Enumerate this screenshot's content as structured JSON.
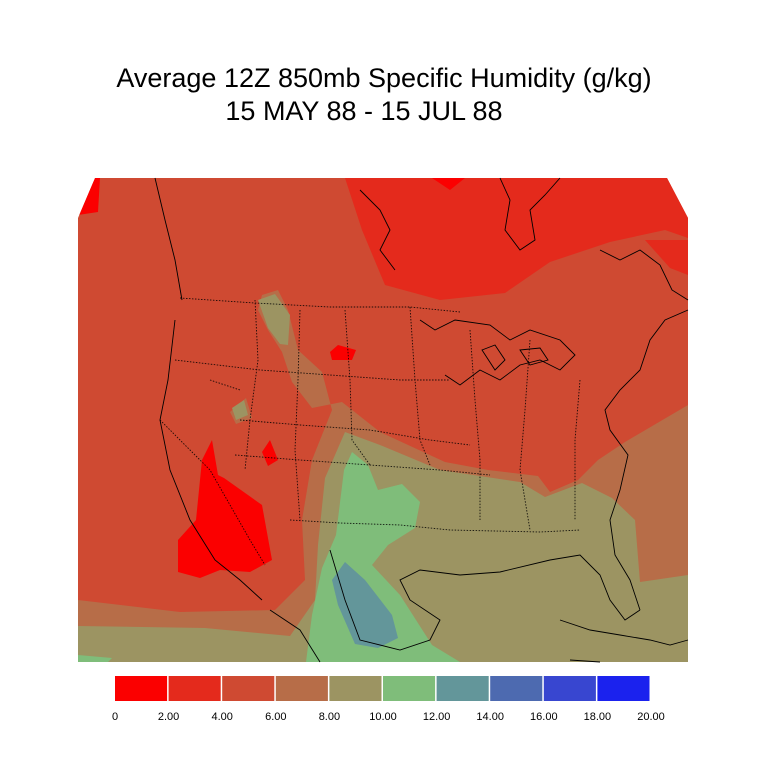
{
  "title_line1": "Average 12Z 850mb Specific Humidity (g/kg)",
  "title_line2": "15 MAY 88 - 15 JUL 88",
  "colors": {
    "c0_2": "#fb0000",
    "c2_4": "#e42a1c",
    "c4_6": "#cf4a32",
    "c6_8": "#b76d48",
    "c8_10": "#9c9462",
    "c10_12": "#7fbd7a",
    "c12_14": "#63969a",
    "c14_16": "#4d6ab0",
    "c16_18": "#3846d0",
    "c18_20": "#1b22ee"
  },
  "legend": {
    "colors": [
      "#fb0000",
      "#e42a1c",
      "#cf4a32",
      "#b76d48",
      "#9c9462",
      "#7fbd7a",
      "#63969a",
      "#4d6ab0",
      "#3846d0",
      "#1b22ee"
    ],
    "labels": [
      "0",
      "2.00",
      "4.00",
      "6.00",
      "8.00",
      "10.00",
      "12.00",
      "14.00",
      "16.00",
      "18.00",
      "20.00"
    ]
  }
}
